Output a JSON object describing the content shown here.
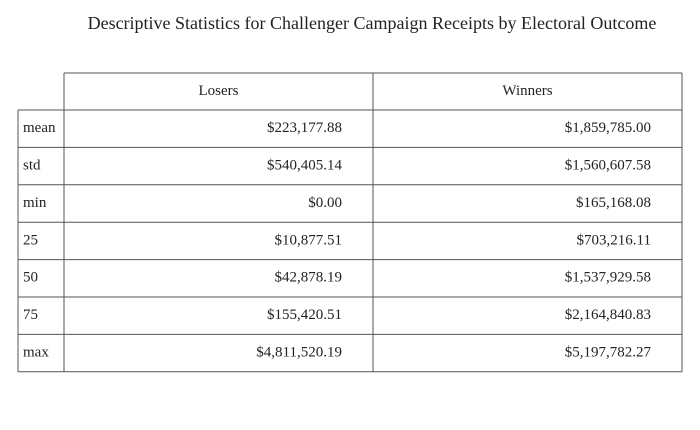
{
  "title": "Descriptive Statistics for Challenger Campaign Receipts by Electoral Outcome",
  "table": {
    "columns": [
      "Losers",
      "Winners"
    ],
    "rows": [
      [
        "mean",
        "$223,177.88",
        "$1,859,785.00"
      ],
      [
        "std",
        "$540,405.14",
        "$1,560,607.58"
      ],
      [
        "min",
        "$0.00",
        "$165,168.08"
      ],
      [
        "25",
        "$10,877.51",
        "$703,216.11"
      ],
      [
        "50",
        "$42,878.19",
        "$1,537,929.58"
      ],
      [
        "75",
        "$155,420.51",
        "$2,164,840.83"
      ],
      [
        "max",
        "$4,811,520.19",
        "$5,197,782.27"
      ]
    ]
  }
}
